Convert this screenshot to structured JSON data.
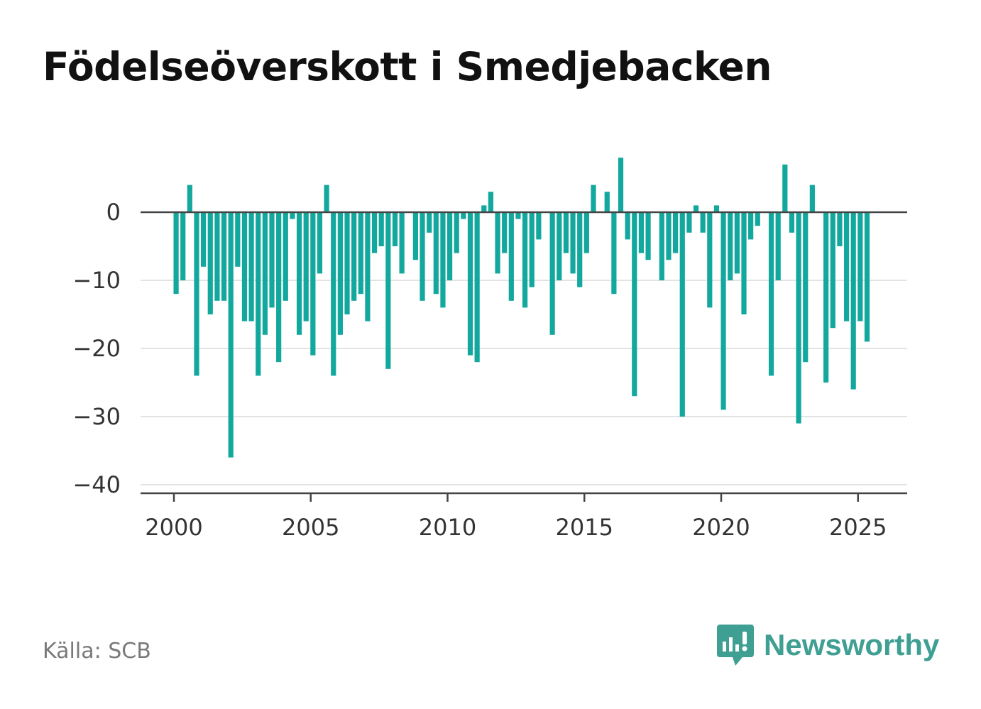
{
  "title": "Födelseöverskott i Smedjebacken",
  "source": "Källa: SCB",
  "brand": {
    "name": "Newsworthy",
    "icon": "newsworthy-logo-icon",
    "color": "#3f9f93"
  },
  "chart_data": {
    "type": "bar",
    "color": "#13a89e",
    "grid": true,
    "ylim": [
      -40,
      8
    ],
    "yticks": [
      0,
      -10,
      -20,
      -30,
      -40
    ],
    "ytick_labels": [
      "0",
      "−10",
      "−20",
      "−30",
      "−40"
    ],
    "xticks": [
      2000,
      2005,
      2010,
      2015,
      2020,
      2025
    ],
    "xtick_labels": [
      "2000",
      "2005",
      "2010",
      "2015",
      "2020",
      "2025"
    ],
    "x": [
      2000.08,
      2000.33,
      2000.58,
      2000.83,
      2001.08,
      2001.33,
      2001.58,
      2001.83,
      2002.08,
      2002.33,
      2002.58,
      2002.83,
      2003.08,
      2003.33,
      2003.58,
      2003.83,
      2004.08,
      2004.33,
      2004.58,
      2004.83,
      2005.08,
      2005.33,
      2005.58,
      2005.83,
      2006.08,
      2006.33,
      2006.58,
      2006.83,
      2007.08,
      2007.33,
      2007.58,
      2007.83,
      2008.08,
      2008.33,
      2008.58,
      2008.83,
      2009.08,
      2009.33,
      2009.58,
      2009.83,
      2010.08,
      2010.33,
      2010.58,
      2010.83,
      2011.08,
      2011.33,
      2011.58,
      2011.83,
      2012.08,
      2012.33,
      2012.58,
      2012.83,
      2013.08,
      2013.33,
      2013.58,
      2013.83,
      2014.08,
      2014.33,
      2014.58,
      2014.83,
      2015.08,
      2015.33,
      2015.58,
      2015.83,
      2016.08,
      2016.33,
      2016.58,
      2016.83,
      2017.08,
      2017.33,
      2017.58,
      2017.83,
      2018.08,
      2018.33,
      2018.58,
      2018.83,
      2019.08,
      2019.33,
      2019.58,
      2019.83,
      2020.08,
      2020.33,
      2020.58,
      2020.83,
      2021.08,
      2021.33,
      2021.58,
      2021.83,
      2022.08,
      2022.33,
      2022.58,
      2022.83,
      2023.08,
      2023.33,
      2023.58,
      2023.83,
      2024.08,
      2024.33,
      2024.58,
      2024.83,
      2025.08,
      2025.33
    ],
    "values": [
      -12,
      -10,
      4,
      -24,
      -8,
      -15,
      -13,
      -13,
      -36,
      -8,
      -16,
      -16,
      -24,
      -18,
      -14,
      -22,
      -13,
      -1,
      -18,
      -16,
      -21,
      -9,
      4,
      -24,
      -18,
      -15,
      -13,
      -12,
      -16,
      -6,
      -5,
      -23,
      -5,
      -9,
      0,
      -7,
      -13,
      -3,
      -12,
      -14,
      -10,
      -6,
      -1,
      -21,
      -22,
      1,
      3,
      -9,
      -6,
      -13,
      -1,
      -14,
      -11,
      -4,
      0,
      -18,
      -10,
      -6,
      -9,
      -11,
      -6,
      4,
      0,
      3,
      -12,
      8,
      -4,
      -27,
      -6,
      -7,
      0,
      -10,
      -7,
      -6,
      -30,
      -3,
      1,
      -3,
      -14,
      1,
      -29,
      -10,
      -9,
      -15,
      -4,
      -2,
      0,
      -24,
      -10,
      7,
      -3,
      -31,
      -22,
      4,
      0,
      -25,
      -17,
      -5,
      -16,
      -26,
      -16,
      -19
    ]
  }
}
